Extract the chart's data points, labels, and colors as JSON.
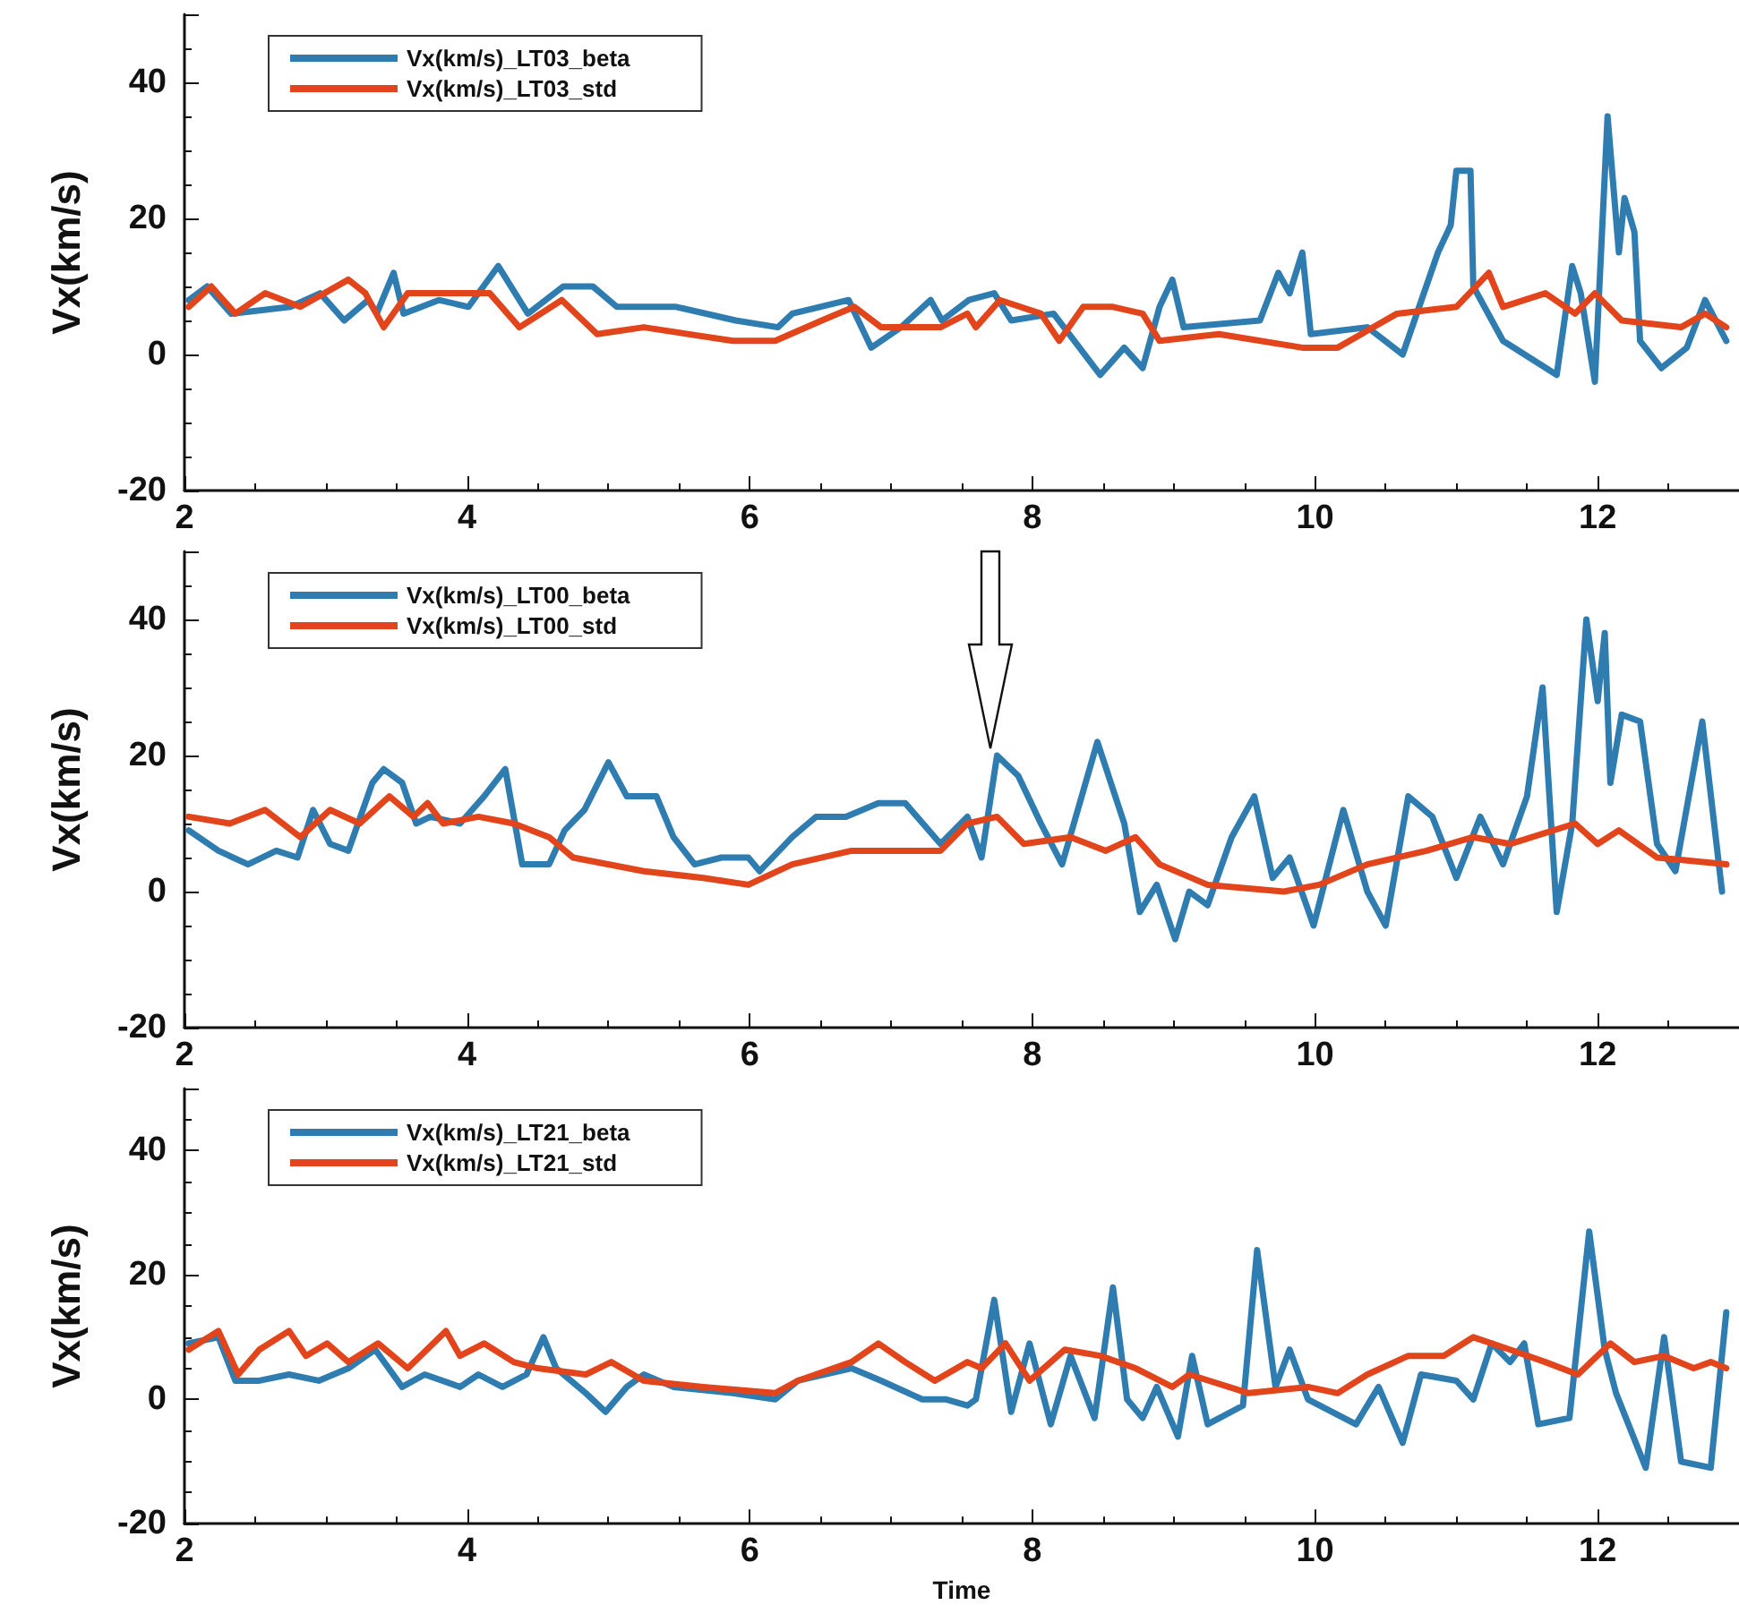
{
  "chart_data": [
    {
      "type": "line",
      "ylabel": "Vx(km/s)",
      "xlim": [
        2,
        13
      ],
      "ylim": [
        -20,
        50
      ],
      "xticks": [
        2,
        4,
        6,
        8,
        10,
        12
      ],
      "yticks": [
        -20,
        0,
        20,
        40
      ],
      "grid": false,
      "legend": "top left",
      "marker": "none",
      "line_style": "solid",
      "series": [
        {
          "name": "Vx(km/s)_LT03_beta",
          "color": "#2f7db0",
          "x": [
            2.03,
            2.16,
            2.33,
            2.75,
            2.96,
            3.13,
            3.3,
            3.36,
            3.48,
            3.55,
            3.8,
            4.01,
            4.22,
            4.43,
            4.68,
            4.89,
            5.06,
            5.48,
            5.9,
            6.2,
            6.3,
            6.7,
            6.86,
            7.07,
            7.28,
            7.36,
            7.55,
            7.73,
            7.85,
            8.15,
            8.48,
            8.65,
            8.78,
            8.9,
            8.99,
            9.07,
            9.61,
            9.74,
            9.82,
            9.91,
            9.97,
            10.37,
            10.62,
            10.87,
            10.96,
            11.0,
            11.1,
            11.12,
            11.33,
            11.71,
            11.82,
            11.88,
            11.98,
            12.07,
            12.15,
            12.19,
            12.26,
            12.3,
            12.45,
            12.63,
            12.76,
            12.91
          ],
          "values": [
            8,
            10,
            6,
            7,
            9,
            5,
            8,
            6,
            12,
            6,
            8,
            7,
            13,
            6,
            10,
            10,
            7,
            7,
            5,
            4,
            6,
            8,
            1,
            4,
            8,
            5,
            8,
            9,
            5,
            6,
            -3,
            1,
            -2,
            7,
            11,
            4,
            5,
            12,
            9,
            15,
            3,
            4,
            0,
            15,
            19,
            27,
            27,
            10,
            2,
            -3,
            13,
            9,
            -4,
            35,
            15,
            23,
            18,
            2,
            -2,
            1,
            8,
            2
          ]
        },
        {
          "name": "Vx(km/s)_LT03_std",
          "color": "#e2441c",
          "x": [
            2.03,
            2.19,
            2.36,
            2.57,
            2.82,
            3.16,
            3.28,
            3.41,
            3.58,
            3.91,
            4.16,
            4.37,
            4.67,
            4.92,
            5.25,
            5.88,
            6.18,
            6.51,
            6.74,
            6.93,
            7.35,
            7.54,
            7.6,
            7.77,
            8.06,
            8.19,
            8.36,
            8.57,
            8.78,
            8.9,
            9.32,
            9.91,
            10.16,
            10.58,
            11.0,
            11.23,
            11.33,
            11.63,
            11.84,
            11.98,
            12.17,
            12.59,
            12.76,
            12.91
          ],
          "values": [
            7,
            10,
            6,
            9,
            7,
            11,
            9,
            4,
            9,
            9,
            9,
            4,
            8,
            3,
            4,
            2,
            2,
            5,
            7,
            4,
            4,
            6,
            4,
            8,
            6,
            2,
            7,
            7,
            6,
            2,
            3,
            1,
            1,
            6,
            7,
            12,
            7,
            9,
            6,
            9,
            5,
            4,
            6,
            4
          ]
        }
      ]
    },
    {
      "type": "line",
      "ylabel": "Vx(km/s)",
      "xlim": [
        2,
        13
      ],
      "ylim": [
        -20,
        50
      ],
      "xticks": [
        2,
        4,
        6,
        8,
        10,
        12
      ],
      "yticks": [
        -20,
        0,
        20,
        40
      ],
      "grid": false,
      "legend": "top left",
      "marker": "none",
      "line_style": "solid",
      "series": [
        {
          "name": "Vx(km/s)_LT00_beta",
          "color": "#2f7db0",
          "x": [
            2.03,
            2.24,
            2.45,
            2.65,
            2.8,
            2.91,
            3.03,
            3.16,
            3.33,
            3.41,
            3.54,
            3.64,
            3.74,
            3.95,
            4.12,
            4.27,
            4.39,
            4.58,
            4.69,
            4.83,
            5.0,
            5.13,
            5.34,
            5.46,
            5.61,
            5.8,
            5.99,
            6.07,
            6.3,
            6.47,
            6.68,
            6.91,
            7.1,
            7.35,
            7.54,
            7.64,
            7.75,
            7.9,
            8.06,
            8.21,
            8.46,
            8.65,
            8.76,
            8.88,
            9.01,
            9.11,
            9.24,
            9.41,
            9.57,
            9.7,
            9.82,
            9.99,
            10.2,
            10.37,
            10.5,
            10.66,
            10.83,
            11.0,
            11.17,
            11.33,
            11.5,
            11.61,
            11.71,
            11.82,
            11.92,
            12.0,
            12.05,
            12.09,
            12.17,
            12.3,
            12.42,
            12.55,
            12.74,
            12.88
          ],
          "values": [
            9,
            6,
            4,
            6,
            5,
            12,
            7,
            6,
            16,
            18,
            16,
            10,
            11,
            10,
            14,
            18,
            4,
            4,
            9,
            12,
            19,
            14,
            14,
            8,
            4,
            5,
            5,
            3,
            8,
            11,
            11,
            13,
            13,
            7,
            11,
            5,
            20,
            17,
            10,
            4,
            22,
            10,
            -3,
            1,
            -7,
            0,
            -2,
            8,
            14,
            2,
            5,
            -5,
            12,
            0,
            -5,
            14,
            11,
            2,
            11,
            4,
            14,
            30,
            -3,
            10,
            40,
            28,
            38,
            16,
            26,
            25,
            7,
            3,
            25,
            0
          ]
        },
        {
          "name": "Vx(km/s)_LT00_std",
          "color": "#e2441c",
          "x": [
            2.03,
            2.32,
            2.57,
            2.82,
            3.03,
            3.24,
            3.45,
            3.62,
            3.72,
            3.83,
            4.08,
            4.33,
            4.58,
            4.75,
            5.25,
            5.67,
            5.99,
            6.3,
            6.72,
            7.14,
            7.35,
            7.54,
            7.75,
            7.94,
            8.27,
            8.52,
            8.73,
            8.9,
            9.24,
            9.78,
            10.03,
            10.37,
            10.79,
            11.12,
            11.38,
            11.84,
            12.0,
            12.15,
            12.42,
            12.91
          ],
          "values": [
            11,
            10,
            12,
            8,
            12,
            10,
            14,
            11,
            13,
            10,
            11,
            10,
            8,
            5,
            3,
            2,
            1,
            4,
            6,
            6,
            6,
            10,
            11,
            7,
            8,
            6,
            8,
            4,
            1,
            0,
            1,
            4,
            6,
            8,
            7,
            10,
            7,
            9,
            5,
            4
          ]
        }
      ]
    },
    {
      "type": "line",
      "ylabel": "Vx(km/s)",
      "xlabel": "Time",
      "xlim": [
        2,
        13
      ],
      "ylim": [
        -20,
        50
      ],
      "xticks": [
        2,
        4,
        6,
        8,
        10,
        12
      ],
      "yticks": [
        -20,
        0,
        20,
        40
      ],
      "grid": false,
      "legend": "top left",
      "marker": "none",
      "line_style": "solid",
      "series": [
        {
          "name": "Vx(km/s)_LT21_beta",
          "color": "#2f7db0",
          "x": [
            2.03,
            2.24,
            2.36,
            2.53,
            2.74,
            2.95,
            3.16,
            3.35,
            3.54,
            3.7,
            3.95,
            4.08,
            4.25,
            4.42,
            4.54,
            4.63,
            4.84,
            4.98,
            5.13,
            5.25,
            5.46,
            5.88,
            6.18,
            6.34,
            6.72,
            6.93,
            7.22,
            7.39,
            7.54,
            7.6,
            7.73,
            7.85,
            7.98,
            8.13,
            8.27,
            8.44,
            8.57,
            8.67,
            8.78,
            8.88,
            9.03,
            9.13,
            9.24,
            9.49,
            9.59,
            9.72,
            9.82,
            9.95,
            10.29,
            10.45,
            10.62,
            10.75,
            11.0,
            11.12,
            11.25,
            11.38,
            11.48,
            11.58,
            11.8,
            11.94,
            12.05,
            12.13,
            12.34,
            12.47,
            12.59,
            12.8,
            12.91
          ],
          "values": [
            9,
            10,
            3,
            3,
            4,
            3,
            5,
            8,
            2,
            4,
            2,
            4,
            2,
            4,
            10,
            5,
            1,
            -2,
            2,
            4,
            2,
            1,
            0,
            3,
            5,
            3,
            0,
            0,
            -1,
            0,
            16,
            -2,
            9,
            -4,
            7,
            -3,
            18,
            0,
            -3,
            2,
            -6,
            7,
            -4,
            -1,
            24,
            2,
            8,
            0,
            -4,
            2,
            -7,
            4,
            3,
            0,
            9,
            6,
            9,
            -4,
            -3,
            27,
            8,
            1,
            -11,
            10,
            -10,
            -11,
            14
          ]
        },
        {
          "name": "Vx(km/s)_LT21_std",
          "color": "#e2441c",
          "x": [
            2.03,
            2.24,
            2.38,
            2.53,
            2.74,
            2.86,
            3.01,
            3.16,
            3.37,
            3.58,
            3.85,
            3.95,
            4.12,
            4.33,
            4.5,
            4.84,
            5.02,
            5.25,
            5.67,
            6.18,
            6.34,
            6.72,
            6.91,
            7.1,
            7.31,
            7.54,
            7.64,
            7.81,
            7.98,
            8.23,
            8.48,
            8.73,
            8.99,
            9.11,
            9.53,
            9.95,
            10.16,
            10.37,
            10.66,
            10.91,
            11.12,
            11.38,
            11.63,
            11.86,
            12.09,
            12.26,
            12.47,
            12.68,
            12.8,
            12.91
          ],
          "values": [
            8,
            11,
            4,
            8,
            11,
            7,
            9,
            6,
            9,
            5,
            11,
            7,
            9,
            6,
            5,
            4,
            6,
            3,
            2,
            1,
            3,
            6,
            9,
            6,
            3,
            6,
            5,
            9,
            3,
            8,
            7,
            5,
            2,
            4,
            1,
            2,
            1,
            4,
            7,
            7,
            10,
            8,
            6,
            4,
            9,
            6,
            7,
            5,
            6,
            5
          ]
        }
      ]
    }
  ]
}
